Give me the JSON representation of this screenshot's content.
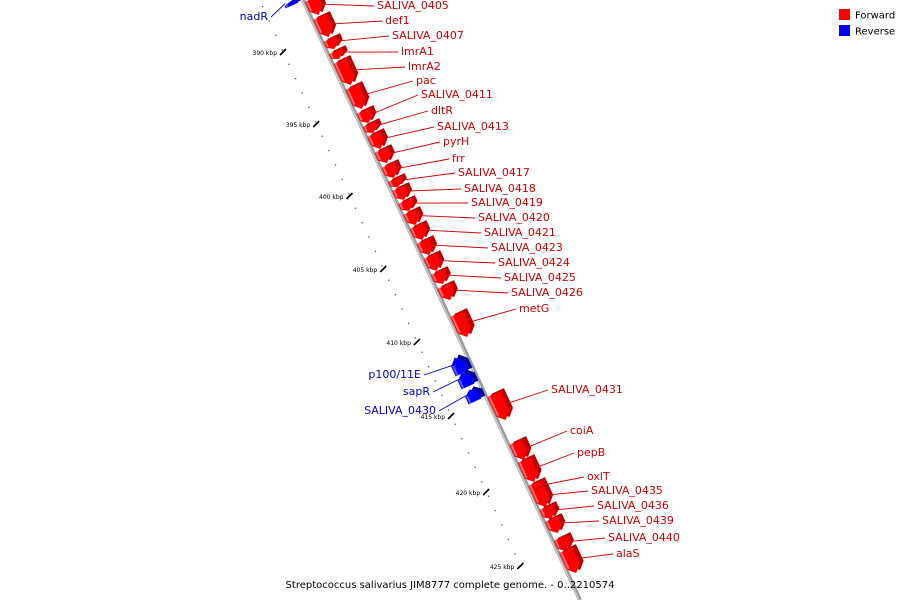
{
  "caption": "Streptococcus salivarius JIM8777 complete genome. - 0..2210574",
  "legend": [
    {
      "label": "Forward",
      "color": "#ff0000"
    },
    {
      "label": "Reverse",
      "color": "#0000ff"
    }
  ],
  "colors": {
    "forward": "#ff0000",
    "forward_dark": "#b80000",
    "forward_light": "#ff6b6b",
    "reverse": "#0000ff",
    "reverse_dark": "#00009c",
    "reverse_light": "#5a5aff",
    "backbone": "#9a9a9a",
    "label_forward": "#cc0000",
    "label_reverse": "#0000cc"
  },
  "ticks": [
    "390 kbp",
    "395 kbp",
    "400 kbp",
    "405 kbp",
    "410 kbp",
    "415 kbp",
    "420 kbp",
    "425 kbp"
  ],
  "genes": [
    {
      "name": "nadR",
      "strand": "reverse"
    },
    {
      "name": "SALIVA_0405",
      "strand": "forward"
    },
    {
      "name": "def1",
      "strand": "forward"
    },
    {
      "name": "SALIVA_0407",
      "strand": "forward"
    },
    {
      "name": "lmrA1",
      "strand": "forward"
    },
    {
      "name": "lmrA2",
      "strand": "forward"
    },
    {
      "name": "pac",
      "strand": "forward"
    },
    {
      "name": "SALIVA_0411",
      "strand": "forward"
    },
    {
      "name": "dltR",
      "strand": "forward"
    },
    {
      "name": "SALIVA_0413",
      "strand": "forward"
    },
    {
      "name": "pyrH",
      "strand": "forward"
    },
    {
      "name": "frr",
      "strand": "forward"
    },
    {
      "name": "SALIVA_0417",
      "strand": "forward"
    },
    {
      "name": "SALIVA_0418",
      "strand": "forward"
    },
    {
      "name": "SALIVA_0419",
      "strand": "forward"
    },
    {
      "name": "SALIVA_0420",
      "strand": "forward"
    },
    {
      "name": "SALIVA_0421",
      "strand": "forward"
    },
    {
      "name": "SALIVA_0423",
      "strand": "forward"
    },
    {
      "name": "SALIVA_0424",
      "strand": "forward"
    },
    {
      "name": "SALIVA_0425",
      "strand": "forward"
    },
    {
      "name": "SALIVA_0426",
      "strand": "forward"
    },
    {
      "name": "metG",
      "strand": "forward"
    },
    {
      "name": "p100/11E",
      "strand": "reverse"
    },
    {
      "name": "sapR",
      "strand": "reverse"
    },
    {
      "name": "SALIVA_0430",
      "strand": "reverse"
    },
    {
      "name": "SALIVA_0431",
      "strand": "forward"
    },
    {
      "name": "coiA",
      "strand": "forward"
    },
    {
      "name": "pepB",
      "strand": "forward"
    },
    {
      "name": "oxlT",
      "strand": "forward"
    },
    {
      "name": "SALIVA_0435",
      "strand": "forward"
    },
    {
      "name": "SALIVA_0436",
      "strand": "forward"
    },
    {
      "name": "SALIVA_0439",
      "strand": "forward"
    },
    {
      "name": "SALIVA_0440",
      "strand": "forward"
    },
    {
      "name": "alaS",
      "strand": "forward"
    }
  ]
}
